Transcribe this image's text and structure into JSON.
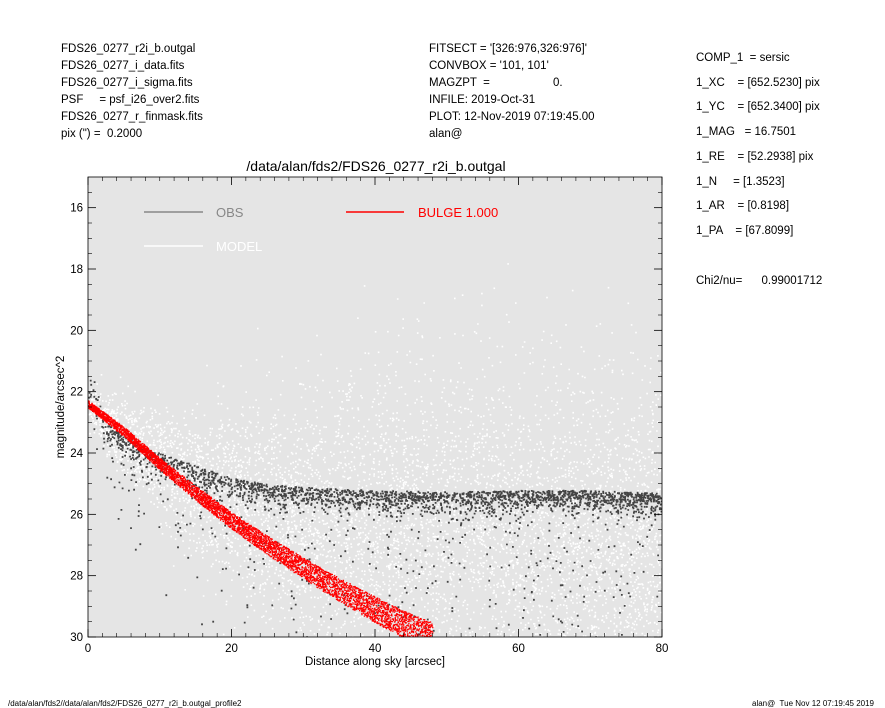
{
  "header_left": [
    "FDS26_0277_r2i_b.outgal",
    "FDS26_0277_i_data.fits",
    "FDS26_0277_i_sigma.fits",
    "PSF     = psf_i26_over2.fits",
    "FDS26_0277_r_finmask.fits",
    "pix (\") =  0.2000"
  ],
  "header_middle": [
    "FITSECT = '[326:976,326:976]'",
    "CONVBOX = '101, 101'",
    "MAGZPT  =",
    "INFILE: 2019-Oct-31",
    "PLOT: 12-Nov-2019 07:19:45.00",
    "alan@"
  ],
  "magzpt_value": "0.",
  "params": [
    "COMP_1  = sersic",
    "1_XC    = [652.5230] pix",
    "1_YC    = [652.3400] pix",
    "1_MAG   = 16.7501",
    "1_RE    = [52.2938] pix",
    "1_N     = [1.3523]",
    "1_AR    = [0.8198]",
    "1_PA    = [67.8099]"
  ],
  "chi2": "Chi2/nu=      0.99001712",
  "footer_left": "/data/alan/fds2//data/alan/fds2/FDS26_0277_r2i_b.outgal_profile2",
  "footer_right": "alan@  Tue Nov 12 07:19:45 2019",
  "colors": {
    "plot_bg": "#e5e5e5",
    "obs": "#444444",
    "model": "#ffffff",
    "bulge": "#ff0000",
    "obs_legend": "#888888"
  },
  "chart_data": {
    "type": "scatter",
    "title": "/data/alan/fds2/FDS26_0277_r2i_b.outgal",
    "xlabel": "Distance along sky [arcsec]",
    "ylabel": "magnitude/arcsec^2",
    "xlim": [
      0,
      80
    ],
    "ylim": [
      30,
      15
    ],
    "y_inverted": true,
    "xticks": [
      0,
      20,
      40,
      60,
      80
    ],
    "yticks": [
      16,
      18,
      20,
      22,
      24,
      26,
      28,
      30
    ],
    "legend": [
      {
        "label": "OBS",
        "color": "#888888"
      },
      {
        "label": "MODEL",
        "color": "#ffffff"
      },
      {
        "label": "BULGE  1.000",
        "color": "#ff0000"
      }
    ],
    "series": [
      {
        "name": "OBS",
        "x": [
          0.5,
          1,
          2,
          3,
          5,
          8,
          10,
          15,
          20,
          25,
          30,
          40,
          50,
          60,
          70,
          80
        ],
        "y": [
          22.0,
          22.6,
          23.0,
          23.2,
          23.5,
          23.9,
          24.1,
          24.5,
          24.9,
          25.1,
          25.2,
          25.3,
          25.35,
          25.3,
          25.3,
          25.4
        ]
      },
      {
        "name": "MODEL",
        "x": [
          0.5,
          2,
          5,
          10,
          15,
          20,
          25,
          30,
          40,
          50,
          60,
          70,
          80
        ],
        "y": [
          22.5,
          22.9,
          23.5,
          24.3,
          25.0,
          25.5,
          25.8,
          26.1,
          26.4,
          26.6,
          26.8,
          26.9,
          27.0
        ]
      },
      {
        "name": "BULGE  1.000",
        "x": [
          0,
          5,
          10,
          15,
          20,
          25,
          30,
          35,
          40,
          45,
          48
        ],
        "y": [
          22.4,
          23.3,
          24.35,
          25.3,
          26.2,
          27.0,
          27.75,
          28.45,
          29.1,
          29.7,
          30.0
        ]
      }
    ]
  }
}
